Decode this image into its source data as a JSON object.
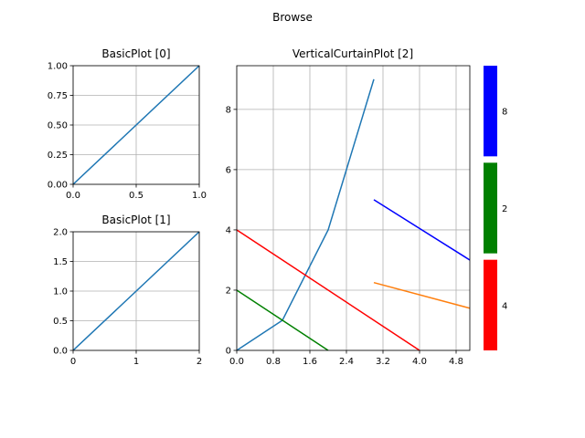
{
  "figure": {
    "title": "Browse"
  },
  "colors": {
    "line": "#1f77b4",
    "orange": "#ff7f0e",
    "red": "#ff0000",
    "green": "#008000",
    "blue": "#0000ff",
    "grid": "#b0b0b0"
  },
  "chart_data": [
    {
      "type": "line",
      "title": "BasicPlot [0]",
      "xlim": [
        0,
        1
      ],
      "ylim": [
        0,
        1
      ],
      "grid": true,
      "xticks": [
        0,
        0.5,
        1
      ],
      "xtick_labels": [
        "0.0",
        "0.5",
        "1.0"
      ],
      "yticks": [
        0,
        0.25,
        0.5,
        0.75,
        1
      ],
      "ytick_labels": [
        "0.00",
        "0.25",
        "0.50",
        "0.75",
        "1.00"
      ],
      "series": [
        {
          "color": "#1f77b4",
          "x": [
            0,
            1
          ],
          "y": [
            0,
            1
          ]
        }
      ]
    },
    {
      "type": "line",
      "title": "BasicPlot [1]",
      "xlim": [
        0,
        2
      ],
      "ylim": [
        0,
        2
      ],
      "grid": true,
      "xticks": [
        0,
        1,
        2
      ],
      "xtick_labels": [
        "0",
        "1",
        "2"
      ],
      "yticks": [
        0,
        0.5,
        1,
        1.5,
        2
      ],
      "ytick_labels": [
        "0.0",
        "0.5",
        "1.0",
        "1.5",
        "2.0"
      ],
      "series": [
        {
          "color": "#1f77b4",
          "x": [
            0,
            2
          ],
          "y": [
            0,
            2
          ]
        }
      ]
    },
    {
      "type": "line",
      "title": "VerticalCurtainPlot [2]",
      "xlim": [
        0,
        5.1
      ],
      "ylim": [
        0,
        9.45
      ],
      "grid": true,
      "xticks": [
        0,
        0.8,
        1.6,
        2.4,
        3.2,
        4.0,
        4.8
      ],
      "xtick_labels": [
        "0.0",
        "0.8",
        "1.6",
        "2.4",
        "3.2",
        "4.0",
        "4.8"
      ],
      "yticks": [
        0,
        2,
        4,
        6,
        8
      ],
      "ytick_labels": [
        "0",
        "2",
        "4",
        "6",
        "8"
      ],
      "series": [
        {
          "color": "#1f77b4",
          "x": [
            0,
            1,
            2,
            3
          ],
          "y": [
            0,
            1,
            4,
            9
          ]
        },
        {
          "color": "#ff7f0e",
          "x": [
            3,
            5.1
          ],
          "y": [
            2.25,
            1.4
          ]
        },
        {
          "color": "#ff0000",
          "x": [
            0,
            4
          ],
          "y": [
            4,
            0
          ]
        },
        {
          "color": "#008000",
          "x": [
            0,
            2
          ],
          "y": [
            2,
            0
          ]
        },
        {
          "color": "#0000ff",
          "x": [
            3,
            5.1
          ],
          "y": [
            5,
            3.0
          ]
        }
      ]
    }
  ],
  "colorbar": {
    "segments": [
      {
        "color": "#ff0000",
        "label": "4"
      },
      {
        "color": "#008000",
        "label": "2"
      },
      {
        "color": "#0000ff",
        "label": "8"
      }
    ]
  }
}
